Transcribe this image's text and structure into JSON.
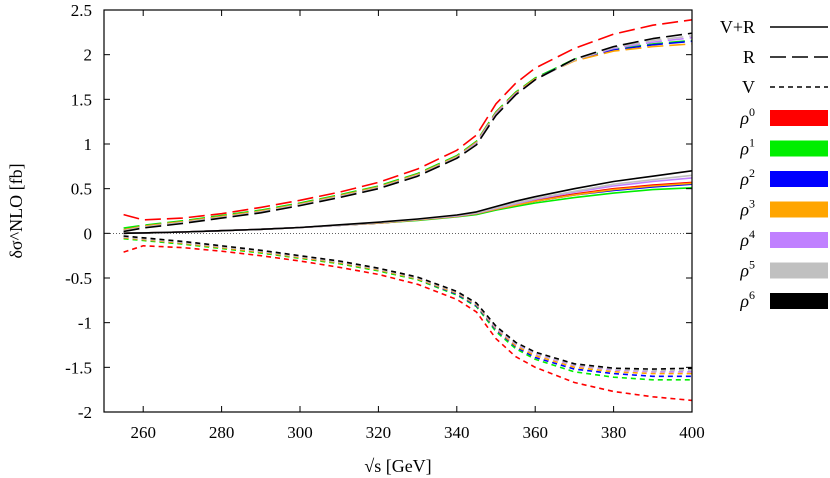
{
  "chart_data": {
    "type": "line",
    "xlabel": "√s [GeV]",
    "ylabel": "δσ^NLO [fb]",
    "xlim": [
      250,
      400
    ],
    "ylim": [
      -2,
      2.5
    ],
    "xticks": [
      "260",
      "280",
      "300",
      "320",
      "340",
      "360",
      "380",
      "400"
    ],
    "yticks": [
      "2.5",
      "2",
      "1.5",
      "1",
      "0.5",
      "0",
      "-0.5",
      "-1",
      "-1.5",
      "-2"
    ],
    "grid": false,
    "zero_line": "dotted",
    "legend_position": "right",
    "line_styles": [
      {
        "label": "V+R",
        "style": "solid"
      },
      {
        "label": "R",
        "style": "long-dash"
      },
      {
        "label": "V",
        "style": "short-dash"
      }
    ],
    "colors": [
      {
        "label": "ρ0",
        "base": "ρ",
        "sup": "0",
        "color": "#ff0000"
      },
      {
        "label": "ρ1",
        "base": "ρ",
        "sup": "1",
        "color": "#00ee00"
      },
      {
        "label": "ρ2",
        "base": "ρ",
        "sup": "2",
        "color": "#0000ff"
      },
      {
        "label": "ρ3",
        "base": "ρ",
        "sup": "3",
        "color": "#ffa500"
      },
      {
        "label": "ρ4",
        "base": "ρ",
        "sup": "4",
        "color": "#c080ff"
      },
      {
        "label": "ρ5",
        "base": "ρ",
        "sup": "5",
        "color": "#c0c0c0"
      },
      {
        "label": "ρ6",
        "base": "ρ",
        "sup": "6",
        "color": "#000000"
      }
    ],
    "x": [
      255,
      260,
      270,
      280,
      290,
      300,
      310,
      320,
      330,
      340,
      345,
      350,
      355,
      360,
      370,
      380,
      390,
      400
    ],
    "series": [
      {
        "style": "solid",
        "color_index": 0,
        "values": [
          0.0,
          0.005,
          0.015,
          0.03,
          0.045,
          0.065,
          0.09,
          0.115,
          0.15,
          0.19,
          0.22,
          0.27,
          0.32,
          0.37,
          0.44,
          0.5,
          0.54,
          0.57
        ]
      },
      {
        "style": "solid",
        "color_index": 1,
        "values": [
          0.0,
          0.005,
          0.015,
          0.03,
          0.045,
          0.065,
          0.09,
          0.115,
          0.145,
          0.185,
          0.21,
          0.26,
          0.3,
          0.34,
          0.4,
          0.45,
          0.49,
          0.51
        ]
      },
      {
        "style": "solid",
        "color_index": 2,
        "values": [
          0.0,
          0.005,
          0.015,
          0.03,
          0.045,
          0.065,
          0.09,
          0.115,
          0.15,
          0.19,
          0.22,
          0.27,
          0.315,
          0.36,
          0.43,
          0.48,
          0.52,
          0.55
        ]
      },
      {
        "style": "solid",
        "color_index": 3,
        "values": [
          0.0,
          0.005,
          0.015,
          0.03,
          0.045,
          0.065,
          0.09,
          0.115,
          0.15,
          0.19,
          0.22,
          0.27,
          0.315,
          0.36,
          0.43,
          0.49,
          0.53,
          0.56
        ]
      },
      {
        "style": "solid",
        "color_index": 4,
        "values": [
          0.0,
          0.005,
          0.015,
          0.03,
          0.045,
          0.065,
          0.09,
          0.12,
          0.155,
          0.195,
          0.225,
          0.28,
          0.33,
          0.38,
          0.46,
          0.53,
          0.58,
          0.62
        ]
      },
      {
        "style": "solid",
        "color_index": 5,
        "values": [
          0.0,
          0.005,
          0.015,
          0.03,
          0.045,
          0.065,
          0.09,
          0.12,
          0.155,
          0.2,
          0.23,
          0.285,
          0.34,
          0.39,
          0.47,
          0.55,
          0.6,
          0.65
        ]
      },
      {
        "style": "solid",
        "color_index": 6,
        "values": [
          0.0,
          0.005,
          0.015,
          0.03,
          0.045,
          0.065,
          0.095,
          0.125,
          0.16,
          0.205,
          0.24,
          0.3,
          0.36,
          0.41,
          0.5,
          0.58,
          0.64,
          0.7
        ]
      },
      {
        "style": "long-dash",
        "color_index": 0,
        "values": [
          0.21,
          0.15,
          0.17,
          0.22,
          0.29,
          0.37,
          0.46,
          0.57,
          0.72,
          0.93,
          1.1,
          1.45,
          1.68,
          1.85,
          2.07,
          2.23,
          2.33,
          2.39
        ]
      },
      {
        "style": "long-dash",
        "color_index": 1,
        "values": [
          0.06,
          0.09,
          0.14,
          0.2,
          0.26,
          0.34,
          0.43,
          0.53,
          0.67,
          0.87,
          1.03,
          1.36,
          1.58,
          1.74,
          1.95,
          2.06,
          2.12,
          2.16
        ]
      },
      {
        "style": "long-dash",
        "color_index": 2,
        "values": [
          0.04,
          0.08,
          0.13,
          0.19,
          0.25,
          0.33,
          0.42,
          0.52,
          0.66,
          0.86,
          1.02,
          1.35,
          1.57,
          1.73,
          1.94,
          2.05,
          2.11,
          2.15
        ]
      },
      {
        "style": "long-dash",
        "color_index": 3,
        "values": [
          0.04,
          0.08,
          0.13,
          0.19,
          0.25,
          0.33,
          0.42,
          0.52,
          0.66,
          0.86,
          1.02,
          1.35,
          1.57,
          1.73,
          1.93,
          2.04,
          2.09,
          2.12
        ]
      },
      {
        "style": "long-dash",
        "color_index": 4,
        "values": [
          0.03,
          0.07,
          0.12,
          0.18,
          0.24,
          0.32,
          0.41,
          0.51,
          0.65,
          0.85,
          1.01,
          1.34,
          1.56,
          1.72,
          1.94,
          2.07,
          2.14,
          2.19
        ]
      },
      {
        "style": "long-dash",
        "color_index": 5,
        "values": [
          0.03,
          0.07,
          0.12,
          0.18,
          0.24,
          0.32,
          0.41,
          0.51,
          0.65,
          0.85,
          1.0,
          1.33,
          1.55,
          1.72,
          1.94,
          2.08,
          2.16,
          2.21
        ]
      },
      {
        "style": "long-dash",
        "color_index": 6,
        "values": [
          0.02,
          0.06,
          0.11,
          0.17,
          0.23,
          0.31,
          0.4,
          0.5,
          0.64,
          0.84,
          0.99,
          1.32,
          1.55,
          1.72,
          1.95,
          2.09,
          2.18,
          2.24
        ]
      },
      {
        "style": "short-dash",
        "color_index": 0,
        "values": [
          -0.21,
          -0.14,
          -0.16,
          -0.2,
          -0.25,
          -0.31,
          -0.38,
          -0.46,
          -0.57,
          -0.74,
          -0.88,
          -1.18,
          -1.38,
          -1.5,
          -1.67,
          -1.77,
          -1.83,
          -1.87
        ]
      },
      {
        "style": "short-dash",
        "color_index": 1,
        "values": [
          -0.06,
          -0.08,
          -0.12,
          -0.17,
          -0.22,
          -0.28,
          -0.34,
          -0.42,
          -0.52,
          -0.69,
          -0.82,
          -1.1,
          -1.29,
          -1.41,
          -1.55,
          -1.61,
          -1.64,
          -1.64
        ]
      },
      {
        "style": "short-dash",
        "color_index": 2,
        "values": [
          -0.05,
          -0.07,
          -0.11,
          -0.16,
          -0.21,
          -0.27,
          -0.33,
          -0.41,
          -0.51,
          -0.68,
          -0.81,
          -1.08,
          -1.27,
          -1.39,
          -1.52,
          -1.57,
          -1.6,
          -1.6
        ]
      },
      {
        "style": "short-dash",
        "color_index": 3,
        "values": [
          -0.05,
          -0.07,
          -0.11,
          -0.16,
          -0.21,
          -0.27,
          -0.33,
          -0.41,
          -0.51,
          -0.67,
          -0.8,
          -1.07,
          -1.26,
          -1.37,
          -1.5,
          -1.55,
          -1.57,
          -1.57
        ]
      },
      {
        "style": "short-dash",
        "color_index": 4,
        "values": [
          -0.04,
          -0.06,
          -0.1,
          -0.15,
          -0.2,
          -0.26,
          -0.32,
          -0.4,
          -0.5,
          -0.66,
          -0.79,
          -1.06,
          -1.24,
          -1.35,
          -1.48,
          -1.53,
          -1.55,
          -1.55
        ]
      },
      {
        "style": "short-dash",
        "color_index": 5,
        "values": [
          -0.04,
          -0.06,
          -0.1,
          -0.15,
          -0.2,
          -0.26,
          -0.32,
          -0.4,
          -0.5,
          -0.66,
          -0.79,
          -1.05,
          -1.23,
          -1.34,
          -1.47,
          -1.52,
          -1.54,
          -1.53
        ]
      },
      {
        "style": "short-dash",
        "color_index": 6,
        "values": [
          -0.03,
          -0.05,
          -0.09,
          -0.14,
          -0.19,
          -0.25,
          -0.31,
          -0.39,
          -0.49,
          -0.65,
          -0.78,
          -1.04,
          -1.22,
          -1.33,
          -1.46,
          -1.51,
          -1.52,
          -1.51
        ]
      }
    ]
  }
}
